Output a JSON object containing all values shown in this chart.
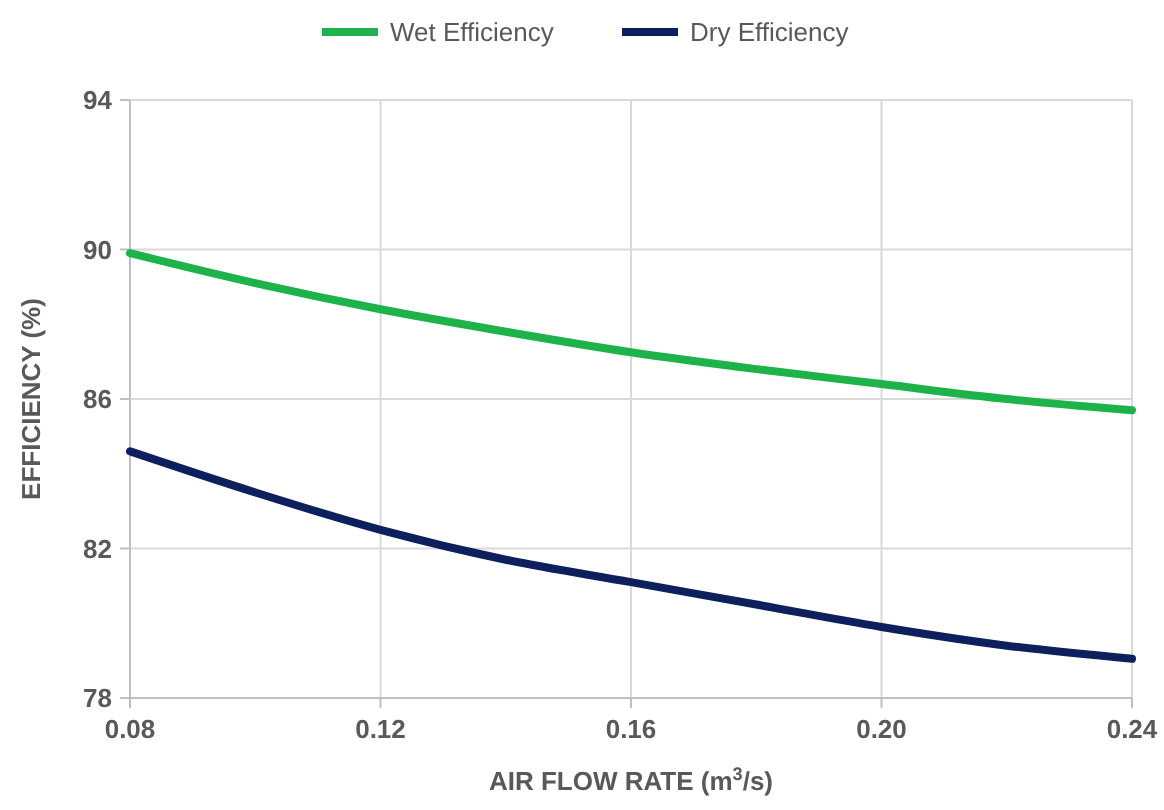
{
  "chart_data": {
    "type": "line",
    "xlabel": "AIR FLOW RATE (m$^{3}$/s)",
    "ylabel": "EFFICIENCY (%)",
    "x": [
      0.08,
      0.1,
      0.12,
      0.14,
      0.16,
      0.18,
      0.2,
      0.22,
      0.24
    ],
    "series": [
      {
        "name": "Wet Efficiency",
        "color": "#1db34a",
        "values": [
          89.9,
          89.1,
          88.4,
          87.8,
          87.25,
          86.8,
          86.4,
          86.0,
          85.7
        ]
      },
      {
        "name": "Dry Efficiency",
        "color": "#0d1f5c",
        "values": [
          84.6,
          83.5,
          82.5,
          81.7,
          81.1,
          80.5,
          79.9,
          79.4,
          79.05
        ]
      }
    ],
    "xlim": [
      0.08,
      0.24
    ],
    "xticks": [
      {
        "value": 0.08,
        "label": "0.08"
      },
      {
        "value": 0.12,
        "label": "0.12"
      },
      {
        "value": 0.16,
        "label": "0.16"
      },
      {
        "value": 0.2,
        "label": "0.20"
      },
      {
        "value": 0.24,
        "label": "0.24"
      }
    ],
    "ylim": [
      78,
      94
    ],
    "yticks": [
      78,
      82,
      86,
      90,
      94
    ],
    "grid": true,
    "legend": "top",
    "marker": "none",
    "line_style": "solid"
  }
}
